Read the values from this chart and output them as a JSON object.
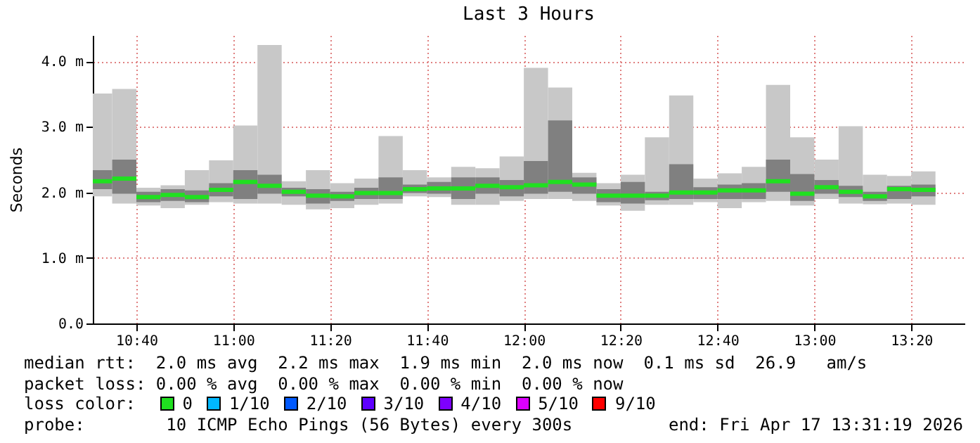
{
  "chart_data": {
    "type": "box",
    "title": "Last 3 Hours",
    "ylabel": "Seconds",
    "x": [
      "2026-04-17T10:32:30",
      "2026-04-17T10:37:30",
      "2026-04-17T10:42:30",
      "2026-04-17T10:47:30",
      "2026-04-17T10:52:30",
      "2026-04-17T10:57:30",
      "2026-04-17T11:02:30",
      "2026-04-17T11:07:30",
      "2026-04-17T11:12:30",
      "2026-04-17T11:17:30",
      "2026-04-17T11:22:30",
      "2026-04-17T11:27:30",
      "2026-04-17T11:32:30",
      "2026-04-17T11:37:30",
      "2026-04-17T11:42:30",
      "2026-04-17T11:47:30",
      "2026-04-17T11:52:30",
      "2026-04-17T11:57:30",
      "2026-04-17T12:02:30",
      "2026-04-17T12:07:30",
      "2026-04-17T12:12:30",
      "2026-04-17T12:17:30",
      "2026-04-17T12:22:30",
      "2026-04-17T12:27:30",
      "2026-04-17T12:32:30",
      "2026-04-17T12:37:30",
      "2026-04-17T12:42:30",
      "2026-04-17T12:47:30",
      "2026-04-17T12:52:30",
      "2026-04-17T12:57:30",
      "2026-04-17T13:02:30",
      "2026-04-17T13:07:30",
      "2026-04-17T13:12:30",
      "2026-04-17T13:17:30",
      "2026-04-17T13:22:30"
    ],
    "series": [
      {
        "color": "#808080",
        "boxes": [
          {
            "low": 1.94,
            "q1": 2.05,
            "median": 2.17,
            "q3": 2.34,
            "high": 3.51
          },
          {
            "low": 1.83,
            "q1": 1.98,
            "median": 2.21,
            "q3": 2.5,
            "high": 3.58
          },
          {
            "low": 1.8,
            "q1": 1.85,
            "median": 1.93,
            "q3": 2.01,
            "high": 2.07
          },
          {
            "low": 1.76,
            "q1": 1.87,
            "median": 1.96,
            "q3": 2.05,
            "high": 2.11
          },
          {
            "low": 1.81,
            "q1": 1.85,
            "median": 1.93,
            "q3": 2.03,
            "high": 2.34
          },
          {
            "low": 1.85,
            "q1": 1.94,
            "median": 2.04,
            "q3": 2.14,
            "high": 2.49
          },
          {
            "low": 1.83,
            "q1": 1.9,
            "median": 2.16,
            "q3": 2.34,
            "high": 3.02
          },
          {
            "low": 1.83,
            "q1": 1.98,
            "median": 2.1,
            "q3": 2.27,
            "high": 4.25
          },
          {
            "low": 1.81,
            "q1": 1.94,
            "median": 2.01,
            "q3": 2.07,
            "high": 2.17
          },
          {
            "low": 1.74,
            "q1": 1.83,
            "median": 1.95,
            "q3": 2.05,
            "high": 2.34
          },
          {
            "low": 1.76,
            "q1": 1.87,
            "median": 1.94,
            "q3": 2.01,
            "high": 2.14
          },
          {
            "low": 1.81,
            "q1": 1.9,
            "median": 1.99,
            "q3": 2.07,
            "high": 2.21
          },
          {
            "low": 1.83,
            "q1": 1.9,
            "median": 1.99,
            "q3": 2.23,
            "high": 2.86
          },
          {
            "low": 1.94,
            "q1": 1.99,
            "median": 2.05,
            "q3": 2.12,
            "high": 2.34
          },
          {
            "low": 1.93,
            "q1": 1.98,
            "median": 2.06,
            "q3": 2.16,
            "high": 2.23
          },
          {
            "low": 1.81,
            "q1": 1.9,
            "median": 2.06,
            "q3": 2.23,
            "high": 2.39
          },
          {
            "low": 1.81,
            "q1": 1.98,
            "median": 2.1,
            "q3": 2.23,
            "high": 2.37
          },
          {
            "low": 1.87,
            "q1": 1.94,
            "median": 2.08,
            "q3": 2.19,
            "high": 2.55
          },
          {
            "low": 1.9,
            "q1": 1.98,
            "median": 2.11,
            "q3": 2.48,
            "high": 3.9
          },
          {
            "low": 1.9,
            "q1": 2.01,
            "median": 2.16,
            "q3": 3.1,
            "high": 3.6
          },
          {
            "low": 1.87,
            "q1": 1.98,
            "median": 2.12,
            "q3": 2.23,
            "high": 2.3
          },
          {
            "low": 1.8,
            "q1": 1.85,
            "median": 1.95,
            "q3": 2.05,
            "high": 2.14
          },
          {
            "low": 1.72,
            "q1": 1.83,
            "median": 1.95,
            "q3": 2.16,
            "high": 2.27
          },
          {
            "low": 1.81,
            "q1": 1.88,
            "median": 1.95,
            "q3": 2.01,
            "high": 2.84
          },
          {
            "low": 1.81,
            "q1": 1.9,
            "median": 2.0,
            "q3": 2.43,
            "high": 3.48
          },
          {
            "low": 1.85,
            "q1": 1.9,
            "median": 2.0,
            "q3": 2.08,
            "high": 2.21
          },
          {
            "low": 1.76,
            "q1": 1.9,
            "median": 2.03,
            "q3": 2.12,
            "high": 2.29
          },
          {
            "low": 1.85,
            "q1": 1.9,
            "median": 2.03,
            "q3": 2.14,
            "high": 2.39
          },
          {
            "low": 1.87,
            "q1": 2.01,
            "median": 2.17,
            "q3": 2.5,
            "high": 3.64
          },
          {
            "low": 1.8,
            "q1": 1.87,
            "median": 1.98,
            "q3": 2.28,
            "high": 2.84
          },
          {
            "low": 1.9,
            "q1": 1.98,
            "median": 2.08,
            "q3": 2.19,
            "high": 2.5
          },
          {
            "low": 1.83,
            "q1": 1.93,
            "median": 2.01,
            "q3": 2.1,
            "high": 3.01
          },
          {
            "low": 1.82,
            "q1": 1.87,
            "median": 1.94,
            "q3": 2.01,
            "high": 2.27
          },
          {
            "low": 1.83,
            "q1": 1.9,
            "median": 2.05,
            "q3": 2.1,
            "high": 2.25
          },
          {
            "low": 1.81,
            "q1": 1.94,
            "median": 2.04,
            "q3": 2.12,
            "high": 2.32
          }
        ]
      }
    ],
    "xlim": [
      "2026-04-17T10:31",
      "2026-04-17T13:31"
    ],
    "xticks": [
      {
        "value": "2026-04-17T10:40",
        "label": "10:40"
      },
      {
        "value": "2026-04-17T11:00",
        "label": "11:00"
      },
      {
        "value": "2026-04-17T11:20",
        "label": "11:20"
      },
      {
        "value": "2026-04-17T11:40",
        "label": "11:40"
      },
      {
        "value": "2026-04-17T12:00",
        "label": "12:00"
      },
      {
        "value": "2026-04-17T12:20",
        "label": "12:20"
      },
      {
        "value": "2026-04-17T12:40",
        "label": "12:40"
      },
      {
        "value": "2026-04-17T13:00",
        "label": "13:00"
      },
      {
        "value": "2026-04-17T13:20",
        "label": "13:20"
      }
    ],
    "ylim": [
      0,
      4.4
    ],
    "yticks": [
      {
        "value": 0,
        "label": "0.0"
      },
      {
        "value": 1,
        "label": "1.0 m"
      },
      {
        "value": 2,
        "label": "2.0 m"
      },
      {
        "value": 3,
        "label": "3.0 m"
      },
      {
        "value": 4,
        "label": "4.0 m"
      }
    ],
    "grid": true,
    "annotations": [
      "median rtt:  2.0 ms avg  2.2 ms max  1.9 ms min  2.0 ms now  0.1 ms sd  26.9   am/s",
      "packet loss: 0.00 % avg  0.00 % max  0.00 % min  0.00 % now",
      "loss color:",
      "0",
      "1/10",
      "2/10",
      "3/10",
      "4/10",
      "5/10",
      "9/10",
      "probe:        10 ICMP Echo Pings (56 Bytes) every 300s",
      "end: Fri Apr 17 13:31:19 2026"
    ]
  }
}
